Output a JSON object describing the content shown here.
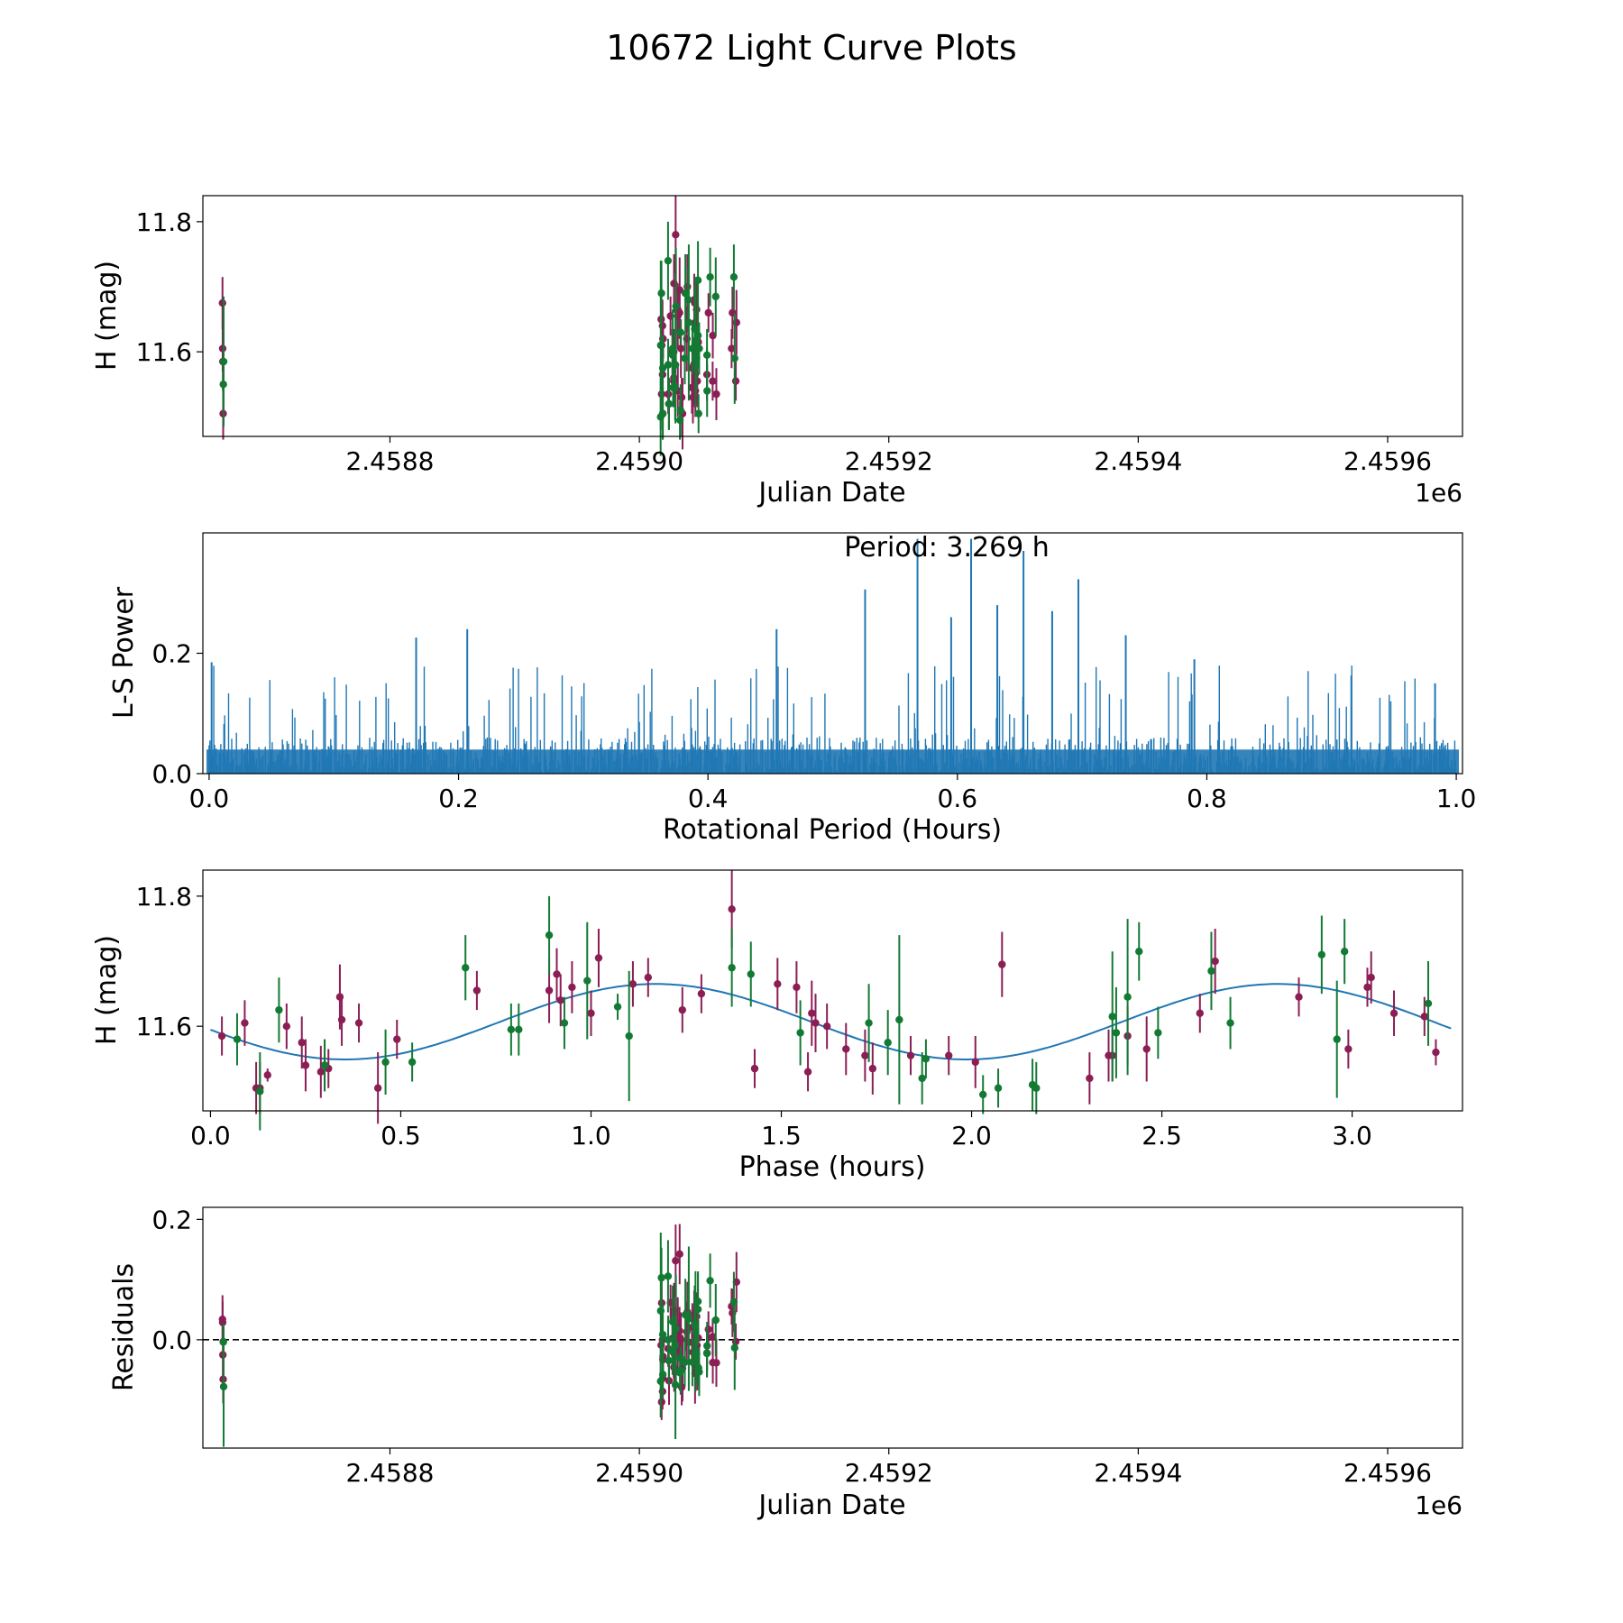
{
  "figure": {
    "title": "10672 Light Curve Plots"
  },
  "colors": {
    "band_a": "#8b1e55",
    "band_b": "#137a34",
    "curve": "#1f77b4",
    "axes": "#000000",
    "zero_line": "#000000"
  },
  "chart_data": [
    {
      "id": "lightcurve",
      "type": "scatter",
      "title": "",
      "xlabel": "Julian Date",
      "ylabel": "H (mag)",
      "x_offset_label": "1e6",
      "xlim": [
        2.45865,
        2.45966
      ],
      "ylim": [
        11.47,
        11.84
      ],
      "xticks": [
        2.4588,
        2.459,
        2.4592,
        2.4594,
        2.4596
      ],
      "xtick_labels": [
        "2.4588",
        "2.4590",
        "2.4592",
        "2.4594",
        "2.4596"
      ],
      "yticks": [
        11.6,
        11.8
      ],
      "ytick_labels": [
        "11.6",
        "11.8"
      ],
      "error_bars": true,
      "series_note": "two bands: magenta and green; points derived from phase-folded data"
    },
    {
      "id": "periodogram",
      "type": "line",
      "title": "",
      "xlabel": "Rotational Period (Hours)",
      "ylabel": "L-S Power",
      "annotation": "Period: 3.269 h",
      "xlim": [
        -0.005,
        1.005
      ],
      "ylim": [
        0,
        0.4
      ],
      "xticks": [
        0,
        0.2,
        0.4,
        0.6,
        0.8,
        1.0
      ],
      "xtick_labels": [
        "0.0",
        "0.2",
        "0.4",
        "0.6",
        "0.8",
        "1.0"
      ],
      "yticks": [
        0,
        0.2
      ],
      "ytick_labels": [
        "0.0",
        "0.2"
      ],
      "peaks": [
        {
          "x": 0.526,
          "y": 0.306
        },
        {
          "x": 0.568,
          "y": 0.39
        },
        {
          "x": 0.611,
          "y": 0.39
        },
        {
          "x": 0.632,
          "y": 0.28
        },
        {
          "x": 0.653,
          "y": 0.37
        },
        {
          "x": 0.676,
          "y": 0.27
        },
        {
          "x": 0.697,
          "y": 0.323
        },
        {
          "x": 0.595,
          "y": 0.26
        },
        {
          "x": 0.166,
          "y": 0.226
        },
        {
          "x": 0.207,
          "y": 0.24
        },
        {
          "x": 0.735,
          "y": 0.23
        },
        {
          "x": 0.455,
          "y": 0.24
        },
        {
          "x": 0.002,
          "y": 0.185
        },
        {
          "x": 0.79,
          "y": 0.19
        },
        {
          "x": 0.983,
          "y": 0.15
        }
      ],
      "noise_level": 0.06,
      "noise_max": 0.18
    },
    {
      "id": "phased",
      "type": "scatter",
      "title": "",
      "xlabel": "Phase (hours)",
      "ylabel": "H (mag)",
      "xlim": [
        -0.02,
        3.29
      ],
      "ylim": [
        11.47,
        11.84
      ],
      "xticks": [
        0,
        0.5,
        1.0,
        1.5,
        2.0,
        2.5,
        3.0
      ],
      "xtick_labels": [
        "0.0",
        "0.5",
        "1.0",
        "1.5",
        "2.0",
        "2.5",
        "3.0"
      ],
      "yticks": [
        11.6,
        11.8
      ],
      "ytick_labels": [
        "11.6",
        "11.8"
      ],
      "model": {
        "type": "sinusoid",
        "mean": 11.607,
        "amplitude": 0.058,
        "period_hours": 1.6345,
        "peak_at": 1.17
      },
      "series": [
        {
          "name": "band_a",
          "color_key": "band_a",
          "x": [
            0.03,
            0.09,
            0.12,
            0.13,
            0.15,
            0.2,
            0.24,
            0.25,
            0.29,
            0.3,
            0.31,
            0.34,
            0.345,
            0.39,
            0.44,
            0.49,
            0.7,
            0.89,
            0.91,
            0.92,
            0.95,
            1.0,
            1.02,
            1.11,
            1.15,
            1.24,
            1.29,
            1.37,
            1.43,
            1.49,
            1.54,
            1.57,
            1.58,
            1.59,
            1.62,
            1.67,
            1.72,
            1.74,
            1.84,
            1.94,
            2.01,
            2.08,
            2.31,
            2.36,
            2.37,
            2.41,
            2.46,
            2.6,
            2.64,
            2.86,
            2.99,
            3.04,
            3.05,
            3.11,
            3.19,
            3.22
          ],
          "y": [
            11.585,
            11.605,
            11.505,
            11.505,
            11.525,
            11.6,
            11.575,
            11.54,
            11.53,
            11.54,
            11.535,
            11.645,
            11.61,
            11.605,
            11.505,
            11.58,
            11.655,
            11.655,
            11.68,
            11.64,
            11.66,
            11.62,
            11.705,
            11.665,
            11.675,
            11.625,
            11.65,
            11.78,
            11.535,
            11.665,
            11.66,
            11.53,
            11.62,
            11.605,
            11.6,
            11.565,
            11.555,
            11.535,
            11.555,
            11.555,
            11.545,
            11.695,
            11.52,
            11.555,
            11.555,
            11.585,
            11.565,
            11.62,
            11.7,
            11.645,
            11.565,
            11.66,
            11.675,
            11.62,
            11.615,
            11.56
          ],
          "err": [
            0.03,
            0.035,
            0.04,
            0.04,
            0.01,
            0.035,
            0.04,
            0.04,
            0.04,
            0.04,
            0.03,
            0.05,
            0.04,
            0.03,
            0.055,
            0.03,
            0.03,
            0.05,
            0.04,
            0.04,
            0.04,
            0.035,
            0.045,
            0.035,
            0.03,
            0.035,
            0.03,
            0.06,
            0.03,
            0.04,
            0.04,
            0.03,
            0.05,
            0.045,
            0.035,
            0.04,
            0.04,
            0.04,
            0.03,
            0.03,
            0.04,
            0.05,
            0.04,
            0.04,
            0.04,
            0.045,
            0.05,
            0.03,
            0.05,
            0.03,
            0.03,
            0.03,
            0.04,
            0.035,
            0.03,
            0.02
          ]
        },
        {
          "name": "band_b",
          "color_key": "band_b",
          "x": [
            0.07,
            0.13,
            0.18,
            0.3,
            0.46,
            0.53,
            0.67,
            0.79,
            0.81,
            0.89,
            0.93,
            0.99,
            1.07,
            1.1,
            1.37,
            1.42,
            1.55,
            1.73,
            1.78,
            1.81,
            1.87,
            1.88,
            2.03,
            2.07,
            2.16,
            2.17,
            2.37,
            2.38,
            2.41,
            2.44,
            2.49,
            2.63,
            2.68,
            2.92,
            2.96,
            2.98,
            3.2
          ],
          "y": [
            11.58,
            11.5,
            11.625,
            11.54,
            11.545,
            11.545,
            11.69,
            11.595,
            11.595,
            11.74,
            11.605,
            11.67,
            11.63,
            11.585,
            11.69,
            11.68,
            11.59,
            11.605,
            11.575,
            11.61,
            11.52,
            11.55,
            11.495,
            11.505,
            11.51,
            11.505,
            11.615,
            11.59,
            11.645,
            11.715,
            11.59,
            11.685,
            11.605,
            11.71,
            11.58,
            11.715,
            11.635
          ],
          "err": [
            0.04,
            0.06,
            0.05,
            0.04,
            0.05,
            0.03,
            0.05,
            0.04,
            0.04,
            0.06,
            0.04,
            0.09,
            0.02,
            0.1,
            0.06,
            0.05,
            0.05,
            0.06,
            0.05,
            0.13,
            0.04,
            0.03,
            0.03,
            0.03,
            0.04,
            0.04,
            0.1,
            0.07,
            0.12,
            0.045,
            0.04,
            0.06,
            0.04,
            0.06,
            0.09,
            0.05,
            0.065
          ]
        }
      ]
    },
    {
      "id": "residuals",
      "type": "scatter",
      "title": "",
      "xlabel": "Julian Date",
      "ylabel": "Residuals",
      "x_offset_label": "1e6",
      "xlim": [
        2.45865,
        2.45966
      ],
      "ylim": [
        -0.18,
        0.22
      ],
      "xticks": [
        2.4588,
        2.459,
        2.4592,
        2.4594,
        2.4596
      ],
      "xtick_labels": [
        "2.4588",
        "2.4590",
        "2.4592",
        "2.4594",
        "2.4596"
      ],
      "yticks": [
        0.0,
        0.2
      ],
      "ytick_labels": [
        "0.0",
        "0.2"
      ],
      "zero_line": true
    }
  ]
}
